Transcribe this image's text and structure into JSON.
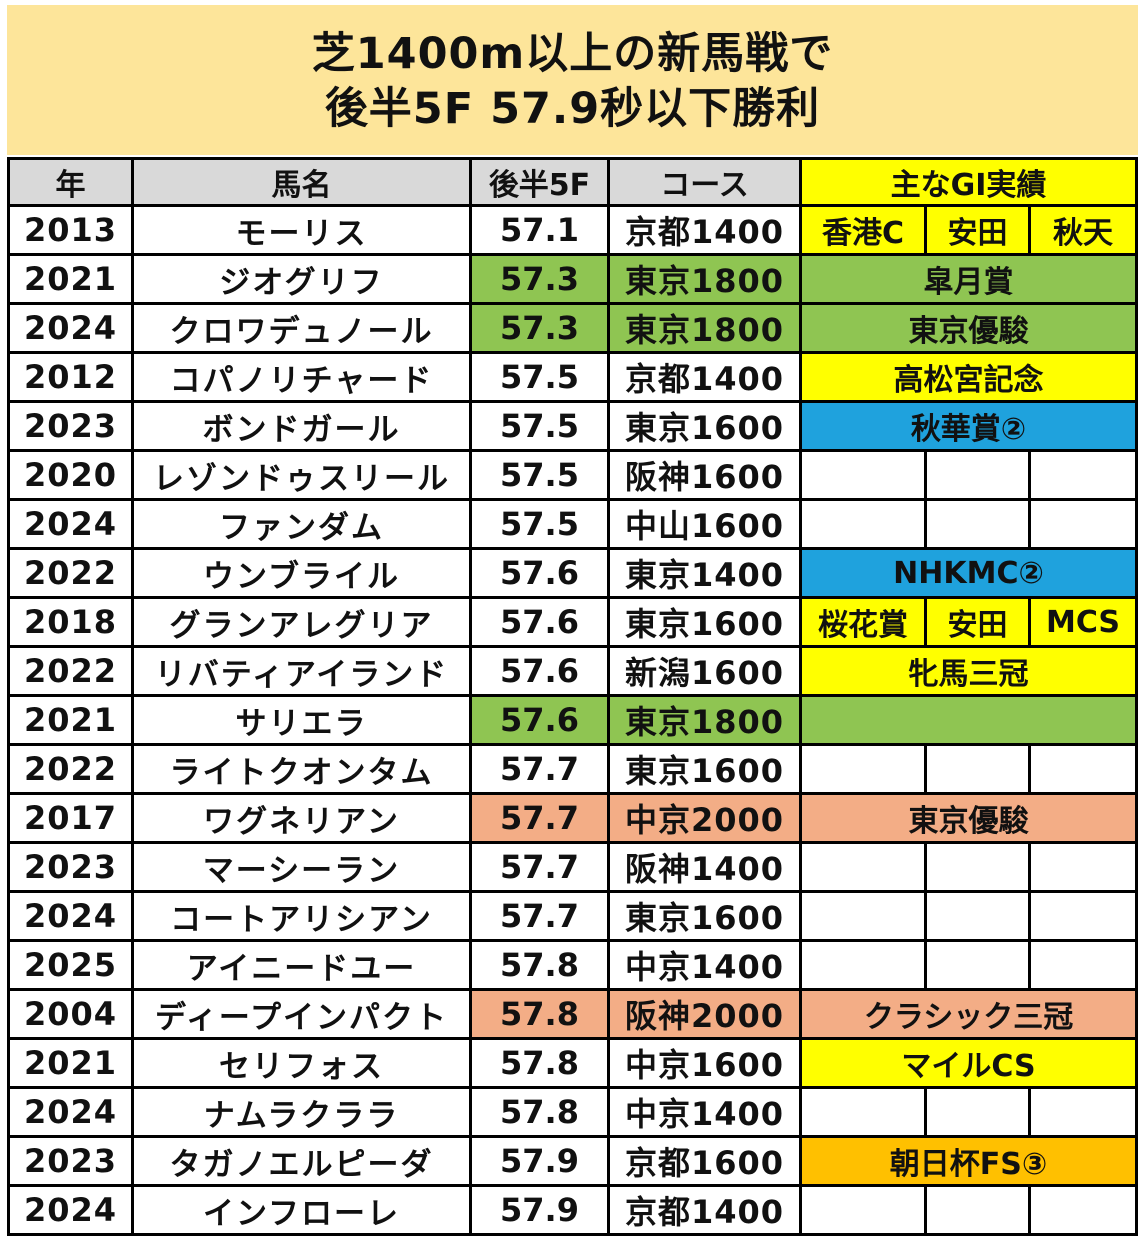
{
  "title": {
    "line1": "芝1400m以上の新馬戦で",
    "line2": "後半5F 57.9秒以下勝利"
  },
  "headers": {
    "year": "年",
    "name": "馬名",
    "time": "後半5F",
    "course": "コース",
    "gi": "主なGI実績"
  },
  "colors": {
    "header_gray": "#d9d9d9",
    "title_bg": "#fde59a",
    "green": "#8fc552",
    "salmon": "#f3ad86",
    "yellow": "#ffff00",
    "blue": "#1fa2dd",
    "orange": "#ffc000"
  },
  "rows": [
    {
      "year": "2013",
      "name": "モーリス",
      "time": "57.1",
      "course": "京都1400",
      "gi": [
        "香港C",
        "安田",
        "秋天"
      ]
    },
    {
      "year": "2021",
      "name": "ジオグリフ",
      "time": "57.3",
      "course": "東京1800",
      "gi": "皐月賞"
    },
    {
      "year": "2024",
      "name": "クロワデュノール",
      "time": "57.3",
      "course": "東京1800",
      "gi": "東京優駿"
    },
    {
      "year": "2012",
      "name": "コパノリチャード",
      "time": "57.5",
      "course": "京都1400",
      "gi": "高松宮記念"
    },
    {
      "year": "2023",
      "name": "ボンドガール",
      "time": "57.5",
      "course": "東京1600",
      "gi": "秋華賞②"
    },
    {
      "year": "2020",
      "name": "レゾンドゥスリール",
      "time": "57.5",
      "course": "阪神1600"
    },
    {
      "year": "2024",
      "name": "ファンダム",
      "time": "57.5",
      "course": "中山1600"
    },
    {
      "year": "2022",
      "name": "ウンブライル",
      "time": "57.6",
      "course": "東京1400",
      "gi": "NHKMC②"
    },
    {
      "year": "2018",
      "name": "グランアレグリア",
      "time": "57.6",
      "course": "東京1600",
      "gi": [
        "桜花賞",
        "安田",
        "MCS"
      ]
    },
    {
      "year": "2022",
      "name": "リバティアイランド",
      "time": "57.6",
      "course": "新潟1600",
      "gi": "牝馬三冠"
    },
    {
      "year": "2021",
      "name": "サリエラ",
      "time": "57.6",
      "course": "東京1800",
      "gi": ""
    },
    {
      "year": "2022",
      "name": "ライトクオンタム",
      "time": "57.7",
      "course": "東京1600"
    },
    {
      "year": "2017",
      "name": "ワグネリアン",
      "time": "57.7",
      "course": "中京2000",
      "gi": "東京優駿"
    },
    {
      "year": "2023",
      "name": "マーシーラン",
      "time": "57.7",
      "course": "阪神1400"
    },
    {
      "year": "2024",
      "name": "コートアリシアン",
      "time": "57.7",
      "course": "東京1600"
    },
    {
      "year": "2025",
      "name": "アイニードユー",
      "time": "57.8",
      "course": "中京1400"
    },
    {
      "year": "2004",
      "name": "ディープインパクト",
      "time": "57.8",
      "course": "阪神2000",
      "gi": "クラシック三冠"
    },
    {
      "year": "2021",
      "name": "セリフォス",
      "time": "57.8",
      "course": "中京1600",
      "gi": "マイルCS"
    },
    {
      "year": "2024",
      "name": "ナムラクララ",
      "time": "57.8",
      "course": "中京1400"
    },
    {
      "year": "2023",
      "name": "タガノエルピーダ",
      "time": "57.9",
      "course": "京都1600",
      "gi": "朝日杯FS③"
    },
    {
      "year": "2024",
      "name": "インフローレ",
      "time": "57.9",
      "course": "京都1400"
    }
  ]
}
